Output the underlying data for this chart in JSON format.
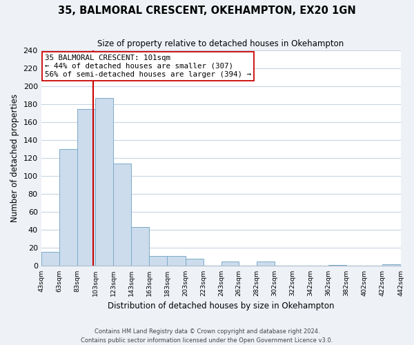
{
  "title": "35, BALMORAL CRESCENT, OKEHAMPTON, EX20 1GN",
  "subtitle": "Size of property relative to detached houses in Okehampton",
  "xlabel": "Distribution of detached houses by size in Okehampton",
  "ylabel": "Number of detached properties",
  "bar_edges": [
    43,
    63,
    83,
    103,
    123,
    143,
    163,
    183,
    203,
    223,
    243,
    262,
    282,
    302,
    322,
    342,
    362,
    382,
    402,
    422,
    442
  ],
  "bar_heights": [
    16,
    130,
    175,
    187,
    114,
    43,
    11,
    11,
    8,
    0,
    5,
    0,
    5,
    0,
    0,
    0,
    1,
    0,
    0,
    2
  ],
  "bar_color": "#ccdcec",
  "bar_edge_color": "#7aaac8",
  "vline_x": 101,
  "vline_color": "#cc0000",
  "annotation_text": "35 BALMORAL CRESCENT: 101sqm\n← 44% of detached houses are smaller (307)\n56% of semi-detached houses are larger (394) →",
  "annotation_box_edgecolor": "#cc0000",
  "annotation_box_facecolor": "#ffffff",
  "ylim": [
    0,
    240
  ],
  "yticks": [
    0,
    20,
    40,
    60,
    80,
    100,
    120,
    140,
    160,
    180,
    200,
    220,
    240
  ],
  "tick_labels": [
    "43sqm",
    "63sqm",
    "83sqm",
    "103sqm",
    "123sqm",
    "143sqm",
    "163sqm",
    "183sqm",
    "203sqm",
    "223sqm",
    "243sqm",
    "262sqm",
    "282sqm",
    "302sqm",
    "322sqm",
    "342sqm",
    "362sqm",
    "382sqm",
    "402sqm",
    "422sqm",
    "442sqm"
  ],
  "footer_text": "Contains HM Land Registry data © Crown copyright and database right 2024.\nContains public sector information licensed under the Open Government Licence v3.0.",
  "bg_color": "#eef2f7",
  "plot_bg_color": "#ffffff",
  "grid_color": "#c8d4e0"
}
